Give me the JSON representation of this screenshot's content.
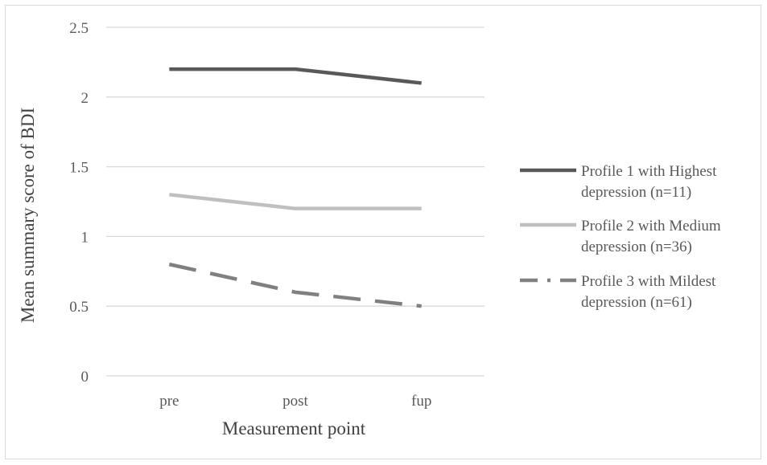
{
  "chart_data": {
    "type": "line",
    "title": "",
    "xlabel": "Measurement point",
    "ylabel": "Mean summary score of BDI",
    "categories": [
      "pre",
      "post",
      "fup"
    ],
    "ylim": [
      0,
      2.5
    ],
    "yticks": [
      0,
      0.5,
      1,
      1.5,
      2,
      2.5
    ],
    "ytick_labels": [
      "0",
      "0.5",
      "1",
      "1.5",
      "2",
      "2.5"
    ],
    "grid": true,
    "legend_position": "right",
    "series": [
      {
        "name_lines": [
          "Profile 1 with Highest",
          "depression (n=11)"
        ],
        "values": [
          2.2,
          2.2,
          2.1
        ],
        "color": "#595959",
        "dash": "solid"
      },
      {
        "name_lines": [
          "Profile 2 with Medium",
          "depression (n=36)"
        ],
        "values": [
          1.3,
          1.2,
          1.2
        ],
        "color": "#bfbfbf",
        "dash": "solid"
      },
      {
        "name_lines": [
          "Profile 3 with Mildest",
          "depression (n=61)"
        ],
        "values": [
          0.8,
          0.6,
          0.5
        ],
        "color": "#808080",
        "dash": "dashed"
      }
    ]
  }
}
